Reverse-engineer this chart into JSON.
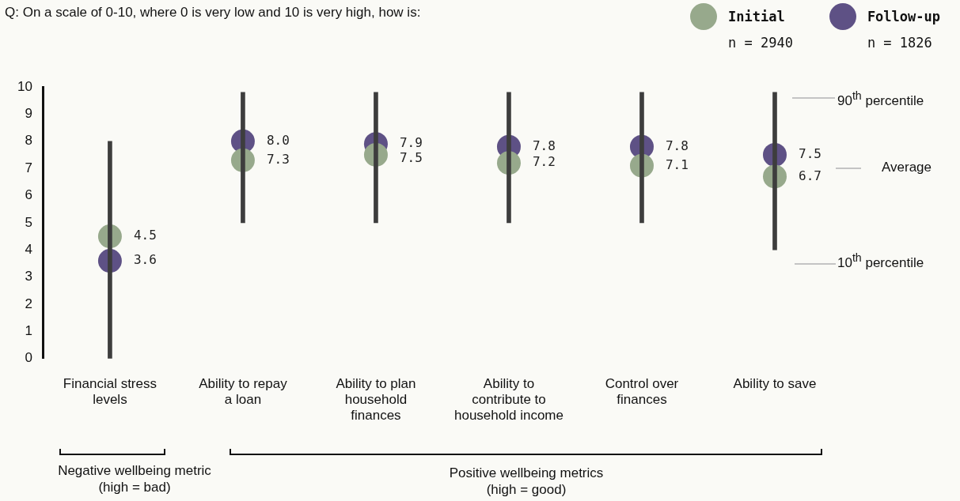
{
  "chart_data": {
    "type": "bar",
    "title": "Q: On a scale of 0-10, where 0 is very low and 10 is very high, how is:",
    "categories": [
      "Financial stress levels",
      "Ability to repay a loan",
      "Ability to plan household finances",
      "Ability to contribute to household income",
      "Control over finances",
      "Ability to save"
    ],
    "series": [
      {
        "color": "#3d3d3d",
        "base": [
          0,
          5,
          5,
          5,
          5,
          4
        ],
        "values": [
          8,
          4.8,
          4.8,
          4.8,
          4.8,
          5.8
        ]
      },
      {
        "type": "scatter",
        "name": "Initial",
        "color": "#97a98c",
        "values": [
          4.5,
          7.3,
          7.5,
          7.2,
          7.1,
          6.7
        ],
        "value_labels": [
          "4.5",
          "7.3",
          "7.5",
          "7.2",
          "7.1",
          "6.7"
        ]
      },
      {
        "type": "scatter",
        "name": "Follow-up",
        "color": "#5e5185",
        "values": [
          3.6,
          8.0,
          7.9,
          7.8,
          7.8,
          7.5
        ],
        "value_labels": [
          "3.6",
          "8.0",
          "7.9",
          "7.8",
          "7.8",
          "7.5"
        ]
      }
    ],
    "marker": "circle",
    "legend": "top right",
    "grid": false,
    "ylim": [
      0,
      10
    ],
    "yticks": [
      0,
      1,
      2,
      3,
      4,
      5,
      6,
      7,
      8,
      9,
      10
    ],
    "annotations": [
      "n = 2940",
      "n = 1826",
      "90$^{th}$ percentile",
      "Average",
      "10$^{th}$ percentile",
      "Negative wellbeing metric (high = bad)",
      "Positive wellbeing metrics (high = good)"
    ]
  }
}
